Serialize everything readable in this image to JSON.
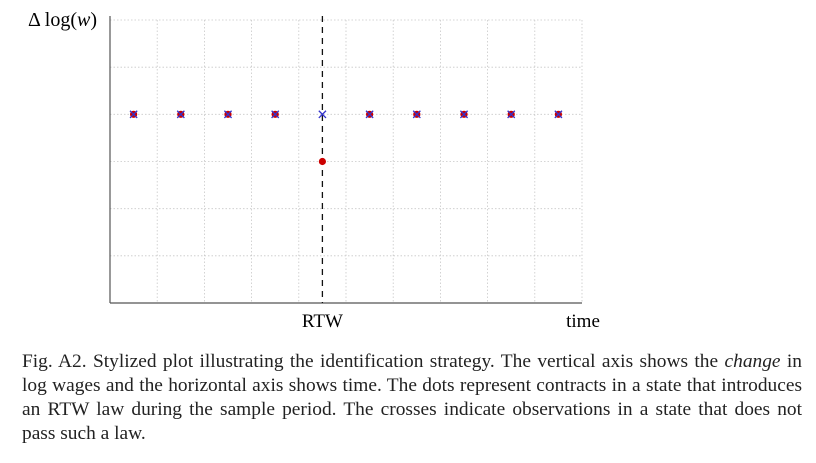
{
  "chart_data": {
    "type": "scatter",
    "ylabel_parts": [
      "Δ log(",
      "w",
      ")"
    ],
    "xlabel": "time",
    "x_ticks": [
      {
        "x": 0,
        "label": "RTW"
      }
    ],
    "xlim": [
      -4,
      5.5
    ],
    "ylim": [
      -3,
      3
    ],
    "grid": true,
    "event_line_x": 0,
    "series": [
      {
        "marker": "dot",
        "color": "#cc0000",
        "points": [
          [
            -4,
            1
          ],
          [
            -3,
            1
          ],
          [
            -2,
            1
          ],
          [
            -1,
            1
          ],
          [
            0,
            0
          ],
          [
            1,
            1
          ],
          [
            2,
            1
          ],
          [
            3,
            1
          ],
          [
            4,
            1
          ],
          [
            5,
            1
          ]
        ]
      },
      {
        "marker": "cross",
        "color": "#3333cc",
        "points": [
          [
            -4,
            1
          ],
          [
            -3,
            1
          ],
          [
            -2,
            1
          ],
          [
            -1,
            1
          ],
          [
            0,
            1
          ],
          [
            1,
            1
          ],
          [
            2,
            1
          ],
          [
            3,
            1
          ],
          [
            4,
            1
          ],
          [
            5,
            1
          ]
        ]
      }
    ]
  },
  "caption": {
    "prefix": "Fig. A2. Stylized plot illustrating the identification strategy. The vertical axis shows the",
    "emphasis": "change",
    "rest": " in log wages and the horizontal axis shows time. The dots represent contracts in a state that introduces an RTW law during the sample period. The crosses indicate observations in a state that does not pass such a law."
  }
}
